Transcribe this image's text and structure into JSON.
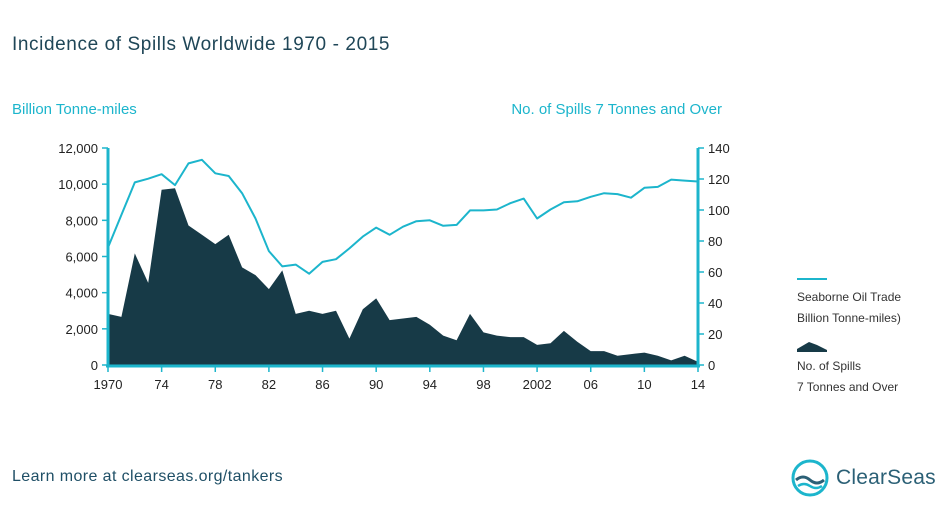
{
  "chart_data": {
    "type": "area+line",
    "title": "Incidence of Spills Worldwide 1970 - 2015",
    "left_axis_label": "Billion Tonne-miles",
    "right_axis_label": "No. of Spills 7 Tonnes and Over",
    "left_ylim": [
      0,
      12000
    ],
    "right_ylim": [
      0,
      140
    ],
    "left_ticks": [
      "0",
      "2,000",
      "4,000",
      "6,000",
      "8,000",
      "10,000",
      "12,000"
    ],
    "right_ticks": [
      "0",
      "20",
      "40",
      "60",
      "80",
      "100",
      "120",
      "140"
    ],
    "xlim": [
      1970,
      2014
    ],
    "x_ticks": [
      {
        "year": 1970,
        "label": "1970"
      },
      {
        "year": 1974,
        "label": "74"
      },
      {
        "year": 1978,
        "label": "78"
      },
      {
        "year": 1982,
        "label": "82"
      },
      {
        "year": 1986,
        "label": "86"
      },
      {
        "year": 1990,
        "label": "90"
      },
      {
        "year": 1994,
        "label": "94"
      },
      {
        "year": 1998,
        "label": "98"
      },
      {
        "year": 2002,
        "label": "2002"
      },
      {
        "year": 2006,
        "label": "06"
      },
      {
        "year": 2010,
        "label": "10"
      },
      {
        "year": 2014,
        "label": "14"
      }
    ],
    "series": [
      {
        "name": "Seaborne Oil Trade Billion Tonne-miles)",
        "axis": "left",
        "style": "line",
        "x": [
          1970,
          1971,
          1972,
          1973,
          1974,
          1975,
          1976,
          1977,
          1978,
          1979,
          1980,
          1981,
          1982,
          1983,
          1984,
          1985,
          1986,
          1987,
          1988,
          1989,
          1990,
          1991,
          1992,
          1993,
          1994,
          1995,
          1996,
          1997,
          1998,
          1999,
          2000,
          2001,
          2002,
          2003,
          2004,
          2005,
          2006,
          2007,
          2008,
          2009,
          2010,
          2011,
          2012,
          2013,
          2014
        ],
        "values": [
          6500,
          8300,
          10100,
          10300,
          10550,
          9950,
          11150,
          11350,
          10600,
          10450,
          9500,
          8100,
          6300,
          5450,
          5550,
          5050,
          5700,
          5850,
          6450,
          7100,
          7600,
          7200,
          7650,
          7950,
          8000,
          7700,
          7750,
          8550,
          8550,
          8600,
          8950,
          9200,
          8100,
          8600,
          9000,
          9050,
          9300,
          9500,
          9450,
          9250,
          9800,
          9850,
          10250,
          10200,
          10150
        ]
      },
      {
        "name": "No. of Spills 7 Tonnes and Over",
        "axis": "right",
        "style": "area",
        "x": [
          1970,
          1971,
          1972,
          1973,
          1974,
          1975,
          1976,
          1977,
          1978,
          1979,
          1980,
          1981,
          1982,
          1983,
          1984,
          1985,
          1986,
          1987,
          1988,
          1989,
          1990,
          1991,
          1992,
          1993,
          1994,
          1995,
          1996,
          1997,
          1998,
          1999,
          2000,
          2001,
          2002,
          2003,
          2004,
          2005,
          2006,
          2007,
          2008,
          2009,
          2010,
          2011,
          2012,
          2013,
          2014
        ],
        "values": [
          33,
          31,
          72,
          53,
          113,
          114,
          90,
          84,
          78,
          84,
          63,
          58,
          49,
          61,
          33,
          35,
          33,
          35,
          17,
          36,
          43,
          29,
          30,
          31,
          26,
          19,
          16,
          33,
          21,
          19,
          18,
          18,
          13,
          14,
          22,
          15,
          9,
          9,
          6,
          7,
          8,
          6,
          3,
          6,
          2
        ]
      }
    ],
    "legend": {
      "placement": "right",
      "items": [
        {
          "line1": "Seaborne Oil Trade",
          "line2": "Billion Tonne-miles)"
        },
        {
          "line1": "No. of Spills",
          "line2": "7 Tonnes and Over"
        }
      ]
    },
    "colors": {
      "line": "#1cb5cc",
      "area": "#173a47",
      "axis": "#1cb5cc",
      "text_dark": "#1f4657"
    }
  },
  "footer": {
    "link_text": "Learn more at clearseas.org/tankers"
  },
  "brand": {
    "name": "ClearSeas",
    "icon": "clearseas-wave-icon"
  }
}
